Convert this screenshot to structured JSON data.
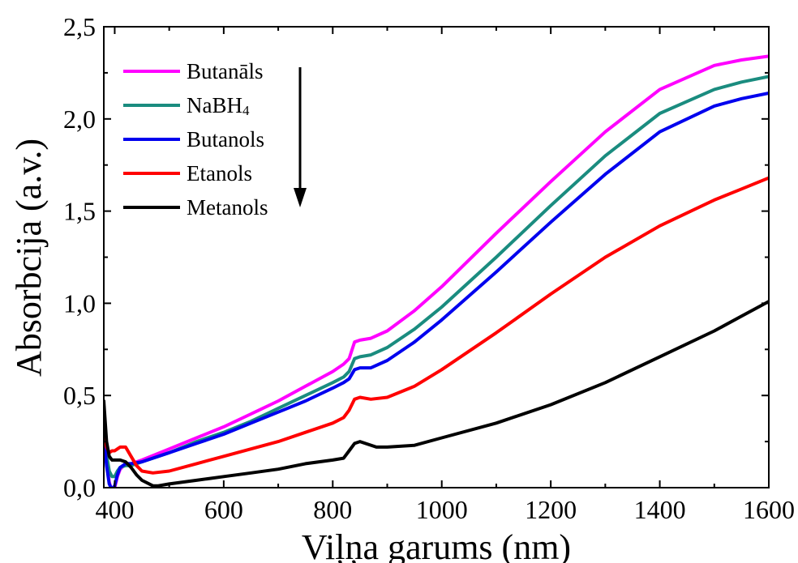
{
  "chart_data": {
    "type": "line",
    "title": "",
    "xlabel": "Viļņa garums (nm)",
    "ylabel": "Absorbcija (a.v.)",
    "xlim": [
      380,
      1600
    ],
    "ylim": [
      0.0,
      2.5
    ],
    "x_ticks": [
      400,
      600,
      800,
      1000,
      1200,
      1400,
      1600
    ],
    "x_tick_labels": [
      "400",
      "600",
      "800",
      "1000",
      "1200",
      "1400",
      "1600"
    ],
    "y_ticks": [
      0.0,
      0.5,
      1.0,
      1.5,
      2.0,
      2.5
    ],
    "y_tick_labels": [
      "0,0",
      "0,5",
      "1,0",
      "1,5",
      "2,0",
      "2,5"
    ],
    "grid": false,
    "legend_position": "top-left",
    "legend_arrow": true,
    "series": [
      {
        "name": "Butanāls",
        "legend": {
          "text": "Butanāls",
          "subscript": ""
        },
        "color": "#ff00ff",
        "x": [
          380,
          385,
          390,
          395,
          400,
          405,
          410,
          420,
          430,
          450,
          500,
          550,
          600,
          650,
          700,
          750,
          800,
          820,
          830,
          840,
          850,
          870,
          900,
          950,
          1000,
          1100,
          1200,
          1300,
          1400,
          1500,
          1550,
          1600
        ],
        "y": [
          0.32,
          0.15,
          0.03,
          -0.02,
          0.0,
          0.06,
          0.1,
          0.13,
          0.13,
          0.15,
          0.21,
          0.27,
          0.33,
          0.4,
          0.47,
          0.55,
          0.63,
          0.67,
          0.7,
          0.79,
          0.8,
          0.81,
          0.85,
          0.96,
          1.09,
          1.38,
          1.66,
          1.93,
          2.16,
          2.29,
          2.32,
          2.34
        ]
      },
      {
        "name": "NaBH4",
        "legend": {
          "text": "NaBH",
          "subscript": "4"
        },
        "color": "#1a8c7f",
        "x": [
          380,
          385,
          390,
          395,
          400,
          405,
          410,
          420,
          430,
          450,
          500,
          550,
          600,
          650,
          700,
          750,
          800,
          820,
          830,
          840,
          850,
          870,
          900,
          950,
          1000,
          1100,
          1200,
          1300,
          1400,
          1500,
          1550,
          1600
        ],
        "y": [
          0.33,
          0.18,
          0.09,
          0.06,
          0.06,
          0.09,
          0.11,
          0.12,
          0.12,
          0.14,
          0.19,
          0.25,
          0.3,
          0.36,
          0.43,
          0.5,
          0.57,
          0.6,
          0.63,
          0.7,
          0.71,
          0.72,
          0.76,
          0.86,
          0.98,
          1.25,
          1.53,
          1.8,
          2.03,
          2.16,
          2.2,
          2.23
        ]
      },
      {
        "name": "Butanols",
        "legend": {
          "text": "Butanols",
          "subscript": ""
        },
        "color": "#0000ee",
        "x": [
          380,
          385,
          390,
          395,
          400,
          405,
          410,
          420,
          430,
          450,
          500,
          550,
          600,
          650,
          700,
          750,
          800,
          820,
          830,
          840,
          850,
          870,
          900,
          950,
          1000,
          1100,
          1200,
          1300,
          1400,
          1500,
          1550,
          1600
        ],
        "y": [
          0.28,
          0.12,
          0.02,
          -0.01,
          0.01,
          0.07,
          0.11,
          0.13,
          0.13,
          0.14,
          0.19,
          0.24,
          0.29,
          0.35,
          0.41,
          0.47,
          0.54,
          0.57,
          0.59,
          0.64,
          0.65,
          0.65,
          0.69,
          0.79,
          0.91,
          1.17,
          1.44,
          1.7,
          1.93,
          2.07,
          2.11,
          2.14
        ]
      },
      {
        "name": "Etanols",
        "legend": {
          "text": "Etanols",
          "subscript": ""
        },
        "color": "#ff0000",
        "x": [
          380,
          385,
          390,
          395,
          400,
          405,
          410,
          420,
          430,
          440,
          450,
          470,
          500,
          550,
          600,
          650,
          700,
          750,
          800,
          820,
          830,
          840,
          850,
          870,
          900,
          950,
          1000,
          1100,
          1200,
          1300,
          1400,
          1500,
          1550,
          1600
        ],
        "y": [
          0.32,
          0.22,
          0.19,
          0.2,
          0.2,
          0.21,
          0.22,
          0.22,
          0.17,
          0.12,
          0.09,
          0.08,
          0.09,
          0.13,
          0.17,
          0.21,
          0.25,
          0.3,
          0.35,
          0.38,
          0.42,
          0.48,
          0.49,
          0.48,
          0.49,
          0.55,
          0.64,
          0.84,
          1.05,
          1.25,
          1.42,
          1.56,
          1.62,
          1.68
        ]
      },
      {
        "name": "Metanols",
        "legend": {
          "text": "Metanols",
          "subscript": ""
        },
        "color": "#000000",
        "x": [
          380,
          385,
          390,
          395,
          400,
          410,
          420,
          430,
          440,
          450,
          470,
          480,
          500,
          550,
          600,
          650,
          700,
          750,
          800,
          820,
          830,
          840,
          850,
          860,
          880,
          900,
          950,
          1000,
          1100,
          1200,
          1300,
          1400,
          1500,
          1550,
          1600
        ],
        "y": [
          0.47,
          0.25,
          0.17,
          0.15,
          0.15,
          0.15,
          0.14,
          0.11,
          0.07,
          0.04,
          0.01,
          0.01,
          0.02,
          0.04,
          0.06,
          0.08,
          0.1,
          0.13,
          0.15,
          0.16,
          0.2,
          0.24,
          0.25,
          0.24,
          0.22,
          0.22,
          0.23,
          0.27,
          0.35,
          0.45,
          0.57,
          0.71,
          0.85,
          0.93,
          1.01
        ]
      }
    ]
  }
}
